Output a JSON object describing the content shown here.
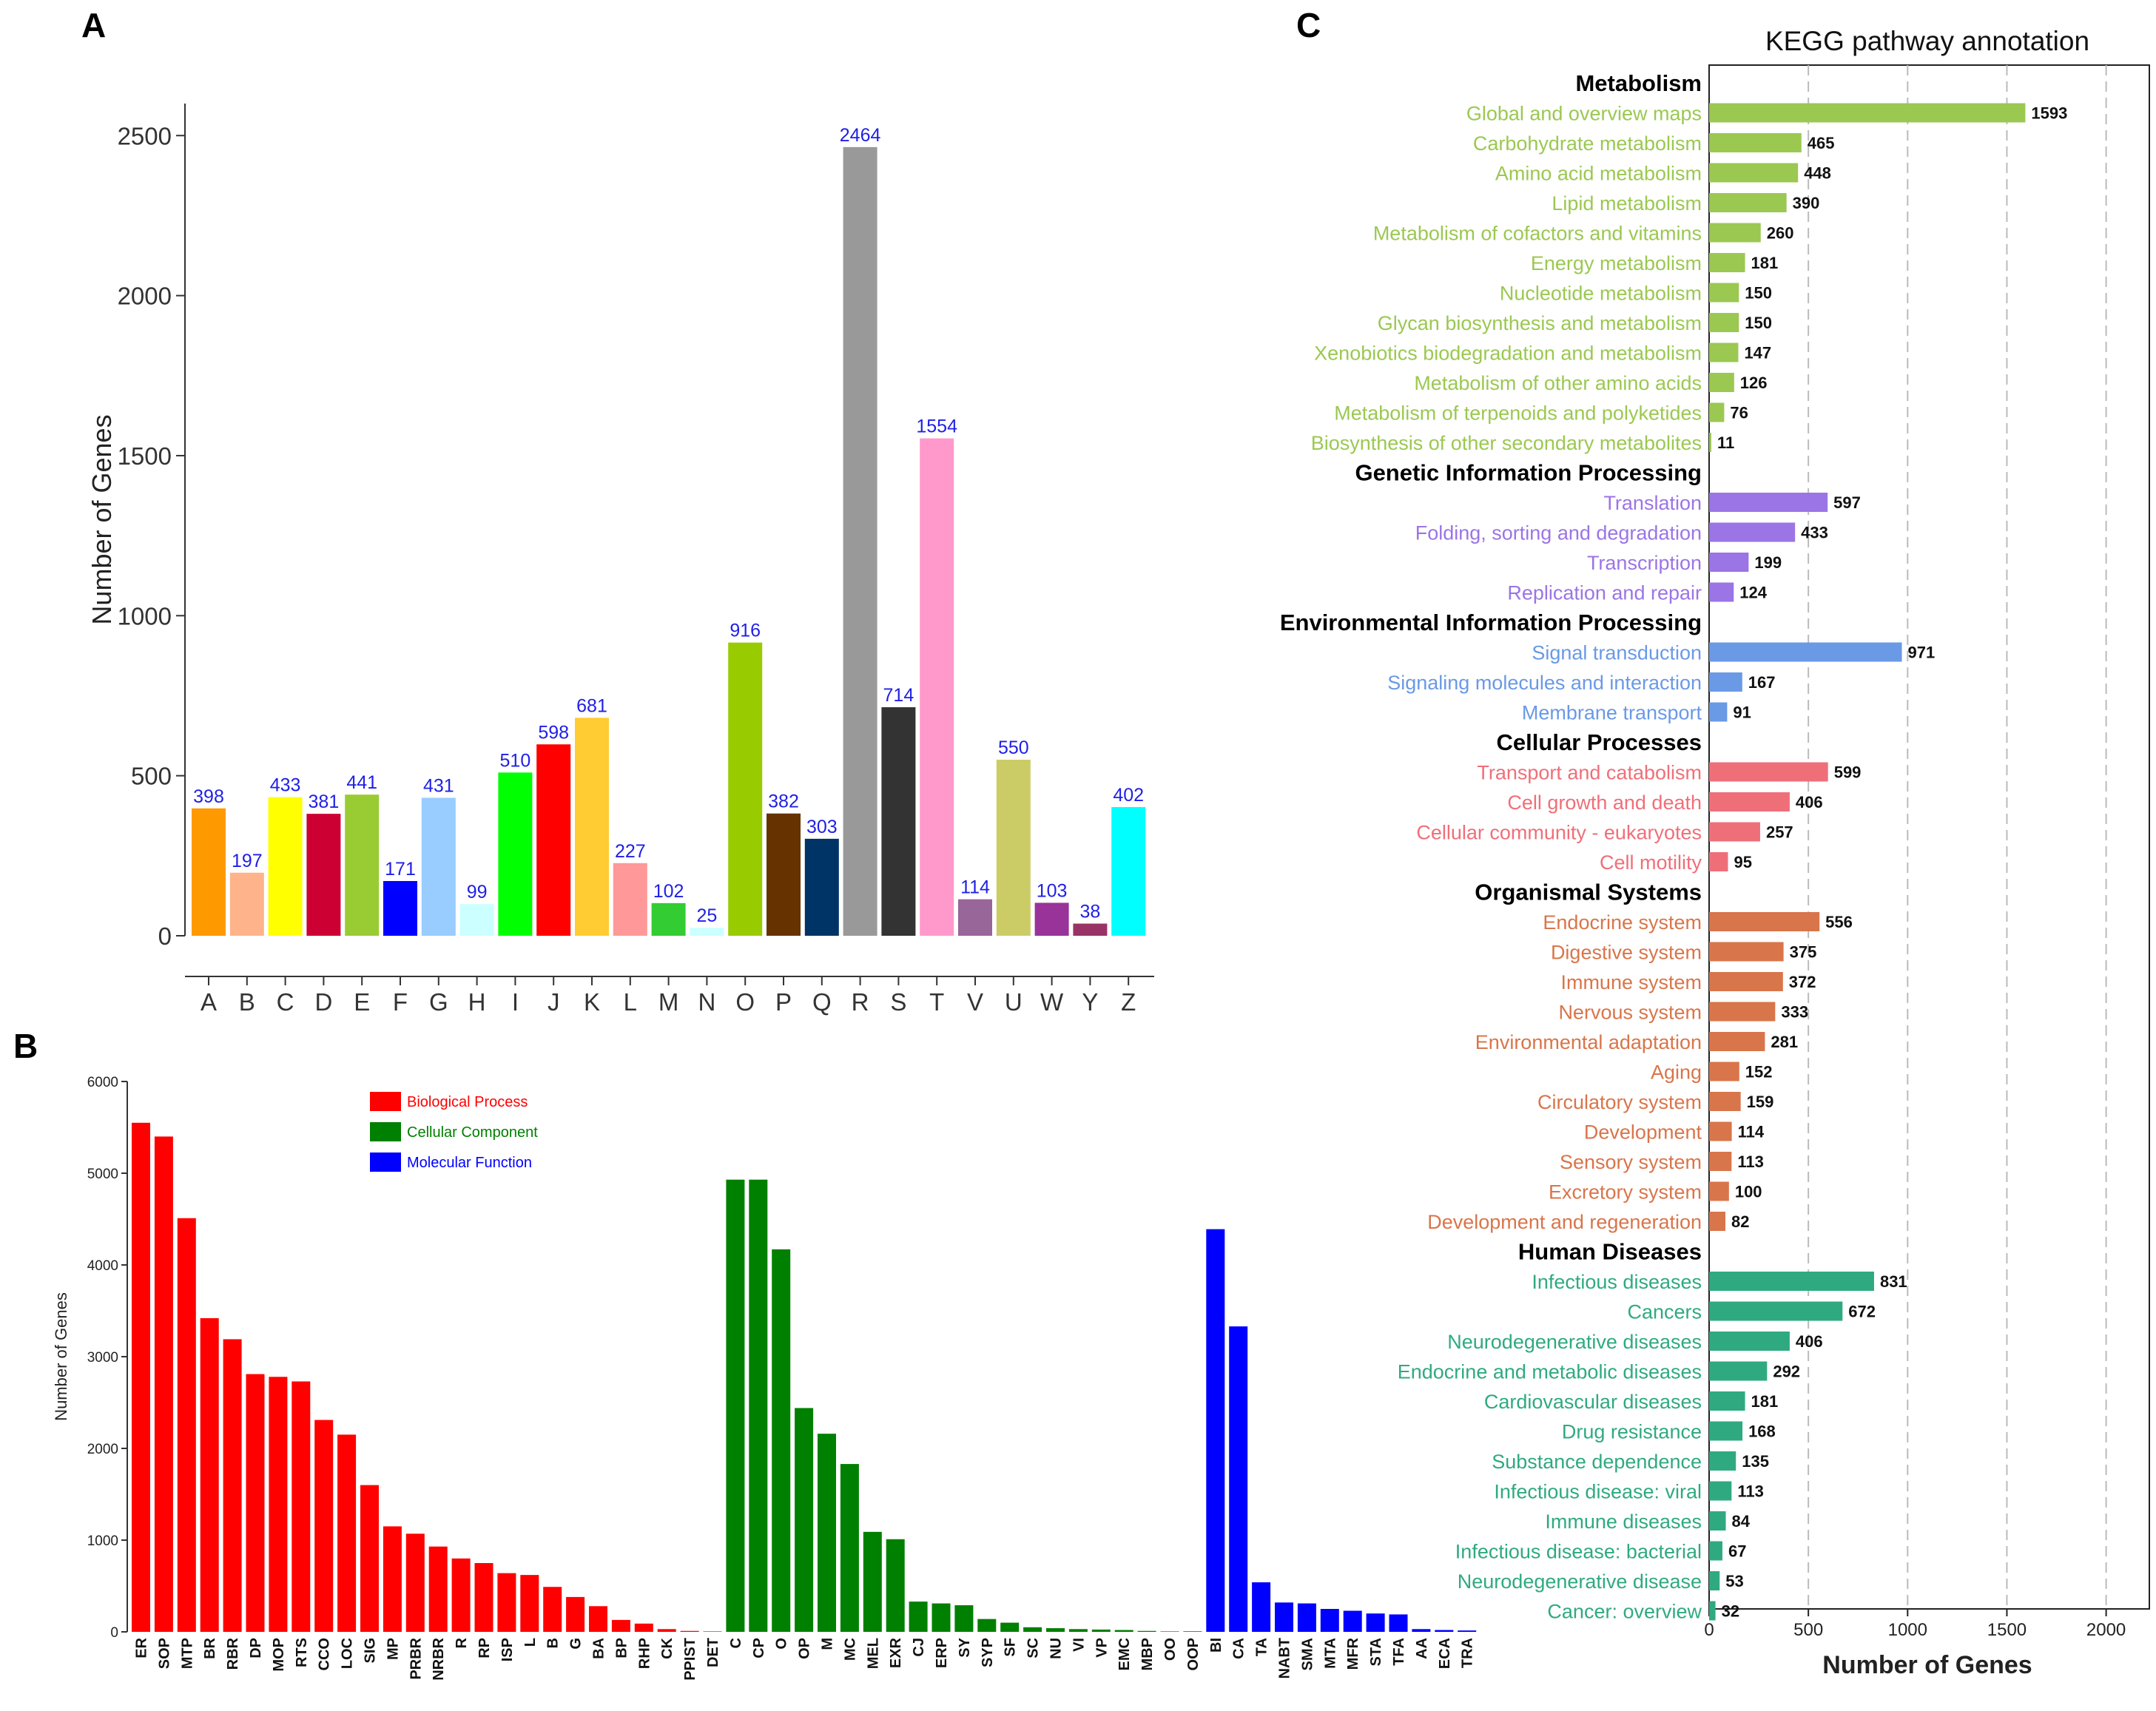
{
  "panels": {
    "a": "A",
    "b": "B",
    "c": "C"
  },
  "chart_data": [
    {
      "type": "bar",
      "panel": "A",
      "ylabel": "Number of Genes",
      "ylim": [
        0,
        2600
      ],
      "yticks": [
        0,
        500,
        1000,
        1500,
        2000,
        2500
      ],
      "grid": false,
      "categories": [
        "A",
        "B",
        "C",
        "D",
        "E",
        "F",
        "G",
        "H",
        "I",
        "J",
        "K",
        "L",
        "M",
        "N",
        "O",
        "P",
        "Q",
        "R",
        "S",
        "T",
        "V",
        "U",
        "W",
        "Y",
        "Z"
      ],
      "values": [
        398,
        197,
        433,
        381,
        441,
        171,
        431,
        99,
        510,
        598,
        681,
        227,
        102,
        25,
        916,
        382,
        303,
        2464,
        714,
        1554,
        114,
        550,
        103,
        38,
        402
      ],
      "colors": [
        "#ff9900",
        "#ffb38a",
        "#ffff00",
        "#cc0033",
        "#99cc33",
        "#0000ff",
        "#99ccff",
        "#ccffff",
        "#00ff00",
        "#ff0000",
        "#ffcc33",
        "#ff9999",
        "#33cc33",
        "#ccffff",
        "#99cc00",
        "#663300",
        "#003366",
        "#999999",
        "#333333",
        "#ff99cc",
        "#996699",
        "#cccc66",
        "#993399",
        "#993366",
        "#00ffff"
      ]
    },
    {
      "type": "bar",
      "panel": "B",
      "ylabel": "Number of Genes",
      "ylim": [
        0,
        6000
      ],
      "yticks": [
        0,
        1000,
        2000,
        3000,
        4000,
        5000,
        6000
      ],
      "grid": false,
      "legend_position": "top-left",
      "series": [
        {
          "name": "Biological Process",
          "color": "#ff0000",
          "categories": [
            "ER",
            "SOP",
            "MTP",
            "BR",
            "RBR",
            "DP",
            "MOP",
            "RTS",
            "CCO",
            "LOC",
            "SIG",
            "MP",
            "PRBR",
            "NRBR",
            "R",
            "RP",
            "ISP",
            "L",
            "B",
            "G",
            "BA",
            "BP",
            "RHP",
            "CK",
            "PPIST",
            "DET"
          ],
          "values": [
            5550,
            5400,
            4510,
            3420,
            3190,
            2810,
            2780,
            2730,
            2310,
            2150,
            1600,
            1150,
            1070,
            930,
            800,
            750,
            640,
            620,
            490,
            380,
            280,
            130,
            90,
            30,
            10,
            5
          ]
        },
        {
          "name": "Cellular Component",
          "color": "#008000",
          "categories": [
            "C",
            "CP",
            "O",
            "OP",
            "M",
            "MC",
            "MEL",
            "EXR",
            "CJ",
            "ERP",
            "SY",
            "SYP",
            "SF",
            "SC",
            "NU",
            "VI",
            "VP",
            "EMC",
            "MBP",
            "OO"
          ],
          "values": [
            4930,
            4930,
            4170,
            2440,
            2160,
            1830,
            1090,
            1010,
            330,
            310,
            290,
            140,
            100,
            50,
            40,
            30,
            25,
            20,
            10,
            5
          ]
        },
        {
          "name": "Molecular Function",
          "color": "#0000ff",
          "categories": [
            "OOP",
            "BI",
            "CA",
            "TA",
            "NABT",
            "SMA",
            "MTA",
            "MFR",
            "STA",
            "TFA",
            "AA",
            "ECA",
            "TRA"
          ],
          "values": [
            5,
            4390,
            3330,
            540,
            320,
            310,
            250,
            230,
            200,
            190,
            30,
            20,
            15
          ]
        }
      ]
    },
    {
      "type": "bar",
      "orientation": "horizontal",
      "panel": "C",
      "title": "KEGG pathway annotation",
      "xlabel": "Number of Genes",
      "xlim": [
        0,
        2200
      ],
      "xticks": [
        0,
        500,
        1000,
        1500,
        2000
      ],
      "grid": "vertical-dashed",
      "groups": [
        {
          "name": "Metabolism",
          "color": "#9bc851",
          "items": [
            {
              "label": "Global and overview maps",
              "value": 1593
            },
            {
              "label": "Carbohydrate metabolism",
              "value": 465
            },
            {
              "label": "Amino acid metabolism",
              "value": 448
            },
            {
              "label": "Lipid metabolism",
              "value": 390
            },
            {
              "label": "Metabolism of cofactors and vitamins",
              "value": 260
            },
            {
              "label": "Energy metabolism",
              "value": 181
            },
            {
              "label": "Nucleotide metabolism",
              "value": 150
            },
            {
              "label": "Glycan biosynthesis and metabolism",
              "value": 150
            },
            {
              "label": "Xenobiotics biodegradation and metabolism",
              "value": 147
            },
            {
              "label": "Metabolism of other amino acids",
              "value": 126
            },
            {
              "label": "Metabolism of terpenoids and polyketides",
              "value": 76
            },
            {
              "label": "Biosynthesis of other secondary metabolites",
              "value": 11
            }
          ]
        },
        {
          "name": "Genetic Information Processing",
          "color": "#9b74e6",
          "items": [
            {
              "label": "Translation",
              "value": 597
            },
            {
              "label": "Folding, sorting and degradation",
              "value": 433
            },
            {
              "label": "Transcription",
              "value": 199
            },
            {
              "label": "Replication and repair",
              "value": 124
            }
          ]
        },
        {
          "name": "Environmental Information Processing",
          "color": "#6a99e6",
          "items": [
            {
              "label": "Signal transduction",
              "value": 971
            },
            {
              "label": "Signaling molecules and interaction",
              "value": 167
            },
            {
              "label": "Membrane transport",
              "value": 91
            }
          ]
        },
        {
          "name": "Cellular Processes",
          "color": "#ef6f79",
          "items": [
            {
              "label": "Transport and catabolism",
              "value": 599
            },
            {
              "label": "Cell growth and death",
              "value": 406
            },
            {
              "label": "Cellular community - eukaryotes",
              "value": 257
            },
            {
              "label": "Cell motility",
              "value": 95
            }
          ]
        },
        {
          "name": "Organismal Systems",
          "color": "#d9754a",
          "items": [
            {
              "label": "Endocrine system",
              "value": 556
            },
            {
              "label": "Digestive system",
              "value": 375
            },
            {
              "label": "Immune system",
              "value": 372
            },
            {
              "label": "Nervous system",
              "value": 333
            },
            {
              "label": "Environmental adaptation",
              "value": 281
            },
            {
              "label": "Aging",
              "value": 152
            },
            {
              "label": "Circulatory system",
              "value": 159
            },
            {
              "label": "Development",
              "value": 114
            },
            {
              "label": "Sensory system",
              "value": 113
            },
            {
              "label": "Excretory system",
              "value": 100
            },
            {
              "label": "Development and regeneration",
              "value": 82
            }
          ]
        },
        {
          "name": "Human Diseases",
          "color": "#2faa80",
          "items": [
            {
              "label": "Infectious diseases",
              "value": 831
            },
            {
              "label": "Cancers",
              "value": 672
            },
            {
              "label": "Neurodegenerative diseases",
              "value": 406
            },
            {
              "label": "Endocrine and metabolic diseases",
              "value": 292
            },
            {
              "label": "Cardiovascular diseases",
              "value": 181
            },
            {
              "label": "Drug resistance",
              "value": 168
            },
            {
              "label": "Substance dependence",
              "value": 135
            },
            {
              "label": "Infectious disease: viral",
              "value": 113
            },
            {
              "label": "Immune diseases",
              "value": 84
            },
            {
              "label": "Infectious disease: bacterial",
              "value": 67
            },
            {
              "label": "Neurodegenerative disease",
              "value": 53
            },
            {
              "label": "Cancer: overview",
              "value": 32
            }
          ]
        }
      ]
    }
  ]
}
